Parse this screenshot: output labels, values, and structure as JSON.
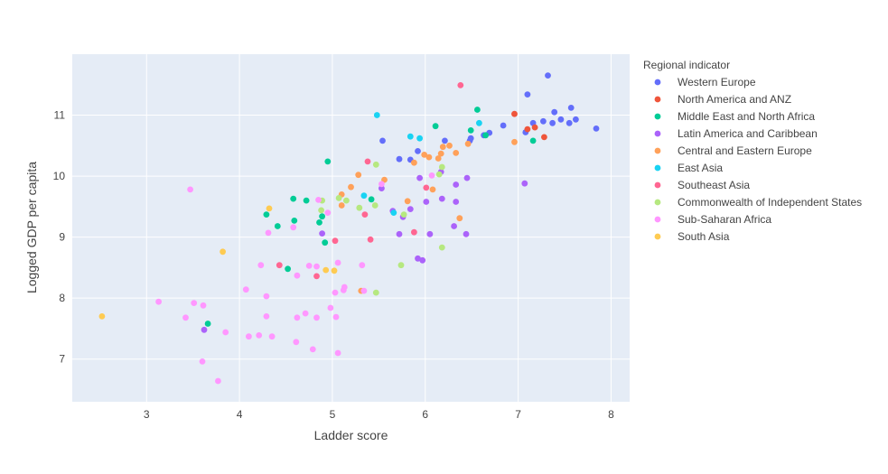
{
  "chart_data": {
    "type": "scatter",
    "title": "",
    "xlabel": "Ladder score",
    "ylabel": "Logged GDP per capita",
    "xlim": [
      2.2,
      8.2
    ],
    "ylim": [
      6.3,
      12.0
    ],
    "xticks": [
      3,
      4,
      5,
      6,
      7,
      8
    ],
    "yticks": [
      7,
      8,
      9,
      10,
      11
    ],
    "grid": true,
    "legend_title": "Regional indicator",
    "legend_position": "right",
    "series": [
      {
        "name": "Western Europe",
        "color": "#636efa",
        "points": [
          [
            7.84,
            10.78
          ],
          [
            7.62,
            10.93
          ],
          [
            7.57,
            11.12
          ],
          [
            7.55,
            10.87
          ],
          [
            7.46,
            10.93
          ],
          [
            7.39,
            11.05
          ],
          [
            7.37,
            10.87
          ],
          [
            7.32,
            11.65
          ],
          [
            7.27,
            10.9
          ],
          [
            7.16,
            10.87
          ],
          [
            7.1,
            11.34
          ],
          [
            7.08,
            10.72
          ],
          [
            6.84,
            10.83
          ],
          [
            6.69,
            10.71
          ],
          [
            6.63,
            10.67
          ],
          [
            6.49,
            10.62
          ],
          [
            6.48,
            10.58
          ],
          [
            6.21,
            10.58
          ],
          [
            5.92,
            10.41
          ],
          [
            5.84,
            10.27
          ],
          [
            5.54,
            10.58
          ],
          [
            5.72,
            10.28
          ]
        ]
      },
      {
        "name": "North America and ANZ",
        "color": "#EF553B",
        "points": [
          [
            7.28,
            10.64
          ],
          [
            7.18,
            10.8
          ],
          [
            7.1,
            10.77
          ],
          [
            6.96,
            11.02
          ]
        ]
      },
      {
        "name": "Middle East and North Africa",
        "color": "#00cc96",
        "points": [
          [
            7.16,
            10.58
          ],
          [
            6.65,
            10.67
          ],
          [
            6.56,
            11.09
          ],
          [
            6.49,
            10.75
          ],
          [
            6.11,
            10.82
          ],
          [
            4.95,
            10.24
          ],
          [
            5.42,
            9.62
          ],
          [
            4.72,
            9.6
          ],
          [
            4.58,
            9.63
          ],
          [
            4.86,
            9.24
          ],
          [
            4.89,
            9.34
          ],
          [
            4.59,
            9.27
          ],
          [
            4.41,
            9.18
          ],
          [
            4.29,
            9.37
          ],
          [
            4.52,
            8.48
          ],
          [
            3.66,
            7.58
          ],
          [
            4.92,
            8.91
          ]
        ]
      },
      {
        "name": "Latin America and Caribbean",
        "color": "#ab63fa",
        "points": [
          [
            7.07,
            9.88
          ],
          [
            6.45,
            9.97
          ],
          [
            6.33,
            9.86
          ],
          [
            6.33,
            9.58
          ],
          [
            6.17,
            10.07
          ],
          [
            6.18,
            9.63
          ],
          [
            6.05,
            9.05
          ],
          [
            6.01,
            9.58
          ],
          [
            5.94,
            9.97
          ],
          [
            5.84,
            9.46
          ],
          [
            5.76,
            9.33
          ],
          [
            5.72,
            9.05
          ],
          [
            5.65,
            9.43
          ],
          [
            5.53,
            9.8
          ],
          [
            5.92,
            8.65
          ],
          [
            5.97,
            8.62
          ],
          [
            6.31,
            9.18
          ],
          [
            6.44,
            9.05
          ],
          [
            4.89,
            9.06
          ],
          [
            3.62,
            7.48
          ]
        ]
      },
      {
        "name": "Central and Eastern Europe",
        "color": "#FFA15A",
        "points": [
          [
            6.96,
            10.56
          ],
          [
            6.46,
            10.53
          ],
          [
            6.33,
            10.38
          ],
          [
            6.26,
            10.5
          ],
          [
            6.19,
            10.48
          ],
          [
            6.17,
            10.37
          ],
          [
            6.14,
            10.29
          ],
          [
            6.04,
            10.31
          ],
          [
            5.99,
            10.35
          ],
          [
            5.88,
            10.22
          ],
          [
            5.81,
            9.59
          ],
          [
            6.08,
            9.78
          ],
          [
            5.56,
            9.94
          ],
          [
            5.28,
            10.02
          ],
          [
            5.2,
            9.82
          ],
          [
            5.1,
            9.52
          ],
          [
            5.1,
            9.7
          ],
          [
            6.37,
            9.31
          ],
          [
            5.31,
            8.12
          ]
        ]
      },
      {
        "name": "East Asia",
        "color": "#19d3f3",
        "points": [
          [
            6.58,
            10.87
          ],
          [
            5.94,
            10.62
          ],
          [
            5.84,
            10.65
          ],
          [
            5.48,
            11.0
          ],
          [
            5.34,
            9.68
          ],
          [
            5.66,
            9.4
          ]
        ]
      },
      {
        "name": "Southeast Asia",
        "color": "#FF6692",
        "points": [
          [
            6.38,
            11.49
          ],
          [
            6.01,
            9.81
          ],
          [
            5.88,
            9.08
          ],
          [
            5.41,
            8.96
          ],
          [
            5.38,
            10.24
          ],
          [
            5.35,
            9.37
          ],
          [
            5.03,
            8.94
          ],
          [
            4.83,
            8.36
          ],
          [
            4.43,
            8.54
          ]
        ]
      },
      {
        "name": "Commonwealth of Independent States",
        "color": "#B6E880",
        "points": [
          [
            6.18,
            10.15
          ],
          [
            6.15,
            10.03
          ],
          [
            5.77,
            9.37
          ],
          [
            5.47,
            10.19
          ],
          [
            5.46,
            9.52
          ],
          [
            5.29,
            9.48
          ],
          [
            5.15,
            9.6
          ],
          [
            5.07,
            9.64
          ],
          [
            4.89,
            9.6
          ],
          [
            4.88,
            9.44
          ],
          [
            5.74,
            8.54
          ],
          [
            6.18,
            8.83
          ],
          [
            5.47,
            8.09
          ]
        ]
      },
      {
        "name": "Sub-Saharan Africa",
        "color": "#FF97FF",
        "points": [
          [
            6.07,
            10.01
          ],
          [
            5.53,
            9.87
          ],
          [
            5.06,
            8.58
          ],
          [
            4.95,
            9.4
          ],
          [
            4.85,
            9.61
          ],
          [
            4.83,
            8.52
          ],
          [
            4.75,
            8.53
          ],
          [
            4.62,
            8.37
          ],
          [
            4.58,
            9.16
          ],
          [
            4.31,
            9.07
          ],
          [
            4.23,
            8.54
          ],
          [
            4.29,
            8.03
          ],
          [
            4.07,
            8.14
          ],
          [
            3.13,
            7.94
          ],
          [
            3.47,
            9.78
          ],
          [
            3.51,
            7.92
          ],
          [
            3.61,
            7.88
          ],
          [
            3.42,
            7.68
          ],
          [
            3.6,
            6.96
          ],
          [
            3.77,
            6.64
          ],
          [
            3.85,
            7.44
          ],
          [
            4.1,
            7.37
          ],
          [
            4.21,
            7.39
          ],
          [
            4.29,
            7.7
          ],
          [
            4.35,
            7.37
          ],
          [
            4.61,
            7.28
          ],
          [
            4.62,
            7.68
          ],
          [
            4.71,
            7.75
          ],
          [
            4.79,
            7.16
          ],
          [
            4.83,
            7.68
          ],
          [
            4.98,
            7.84
          ],
          [
            5.03,
            8.09
          ],
          [
            5.04,
            7.69
          ],
          [
            5.06,
            7.1
          ],
          [
            5.12,
            8.13
          ],
          [
            5.13,
            8.18
          ],
          [
            5.32,
            8.54
          ],
          [
            5.34,
            8.12
          ]
        ]
      },
      {
        "name": "South Asia",
        "color": "#FECB52",
        "points": [
          [
            2.52,
            7.7
          ],
          [
            3.82,
            8.76
          ],
          [
            4.32,
            9.47
          ],
          [
            4.93,
            8.46
          ],
          [
            5.02,
            8.45
          ]
        ]
      }
    ]
  }
}
